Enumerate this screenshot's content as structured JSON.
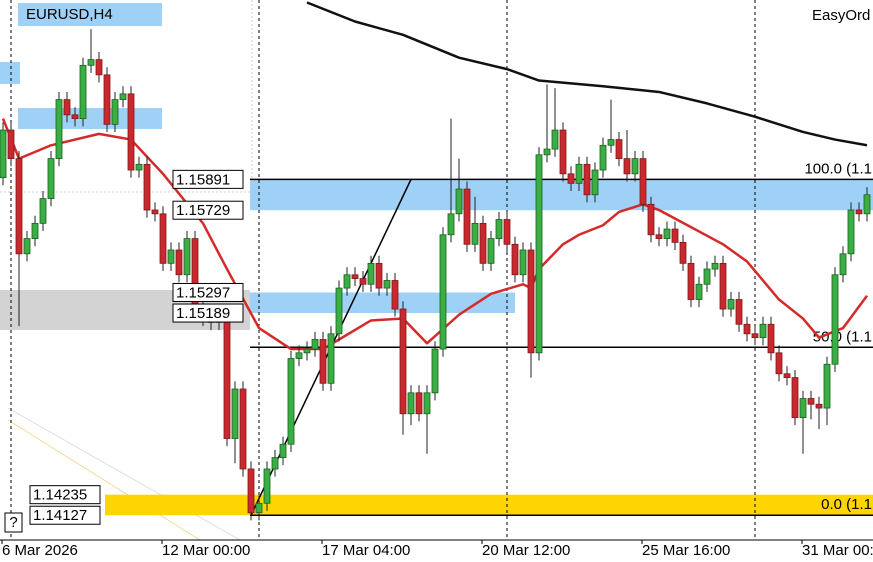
{
  "chart_data": {
    "type": "candlestick",
    "title": "EURUSD,H4",
    "watermark": "EasyOrd",
    "help": "?",
    "categories": [
      "6 Mar 2026",
      null,
      null,
      null,
      null,
      null,
      null,
      null,
      null,
      null,
      null,
      null,
      null,
      null,
      null,
      null,
      null,
      null,
      null,
      null,
      "12 Mar 00:00",
      null,
      null,
      null,
      null,
      null,
      null,
      null,
      null,
      null,
      null,
      null,
      null,
      null,
      null,
      null,
      null,
      null,
      null,
      null,
      "17 Mar 04:00",
      null,
      null,
      null,
      null,
      null,
      null,
      null,
      null,
      null,
      null,
      null,
      null,
      null,
      null,
      null,
      null,
      null,
      null,
      null,
      "20 Mar 12:00",
      null,
      null,
      null,
      null,
      null,
      null,
      null,
      null,
      null,
      null,
      null,
      null,
      null,
      null,
      null,
      null,
      null,
      null,
      null,
      "25 Mar 16:00",
      null,
      null,
      null,
      null,
      null,
      null,
      null,
      null,
      null,
      null,
      null,
      null,
      null,
      null,
      null,
      null,
      null,
      null,
      null,
      "31 Mar 00:",
      null,
      null,
      null,
      null,
      null,
      null,
      null,
      null
    ],
    "open": [
      1.159,
      1.1615,
      1.16,
      1.155,
      1.1558,
      1.1566,
      1.1579,
      1.16,
      1.1631,
      1.1623,
      1.1621,
      1.1649,
      1.1652,
      1.1644,
      1.1618,
      1.1631,
      1.1634,
      1.1594,
      1.1597,
      1.1573,
      1.1571,
      1.1545,
      1.1552,
      1.1539,
      1.1558,
      1.1521,
      1.1516,
      1.1514,
      1.1516,
      1.1453,
      1.1479,
      1.1437,
      1.1414,
      1.1419,
      1.1437,
      1.1443,
      1.145,
      1.1495,
      1.1498,
      1.15,
      1.1505,
      1.1482,
      1.1508,
      1.1532,
      1.1539,
      1.1537,
      1.1534,
      1.1545,
      1.1532,
      1.1536,
      1.1521,
      1.1466,
      1.1477,
      1.1466,
      1.1477,
      1.15,
      1.156,
      1.1571,
      1.1584,
      1.1555,
      1.1566,
      1.1545,
      1.1558,
      1.1568,
      1.1555,
      1.1539,
      1.1552,
      1.1498,
      1.1602,
      1.1605,
      1.1615,
      1.1592,
      1.1587,
      1.1597,
      1.1581,
      1.1594,
      1.1607,
      1.161,
      1.16,
      1.1592,
      1.16,
      1.1576,
      1.156,
      1.1558,
      1.1563,
      1.1556,
      1.1545,
      1.1526,
      1.1534,
      1.1542,
      1.1545,
      1.1521,
      1.1526,
      1.1513,
      1.1508,
      1.1506,
      1.1513,
      1.1498,
      1.1487,
      1.1485,
      1.1464,
      1.1474,
      1.1471,
      1.1469,
      1.1492,
      1.1539,
      1.155,
      1.1573,
      1.1571
    ],
    "high": [
      1.1619,
      1.1619,
      1.1604,
      1.1562,
      1.157,
      1.1583,
      1.1604,
      1.1635,
      1.1635,
      1.1627,
      1.1653,
      1.1668,
      1.1656,
      1.1648,
      1.1635,
      1.1638,
      1.1638,
      1.1601,
      1.1601,
      1.1577,
      1.1575,
      1.1556,
      1.1556,
      1.1562,
      1.1562,
      1.1525,
      1.152,
      1.152,
      1.152,
      1.1483,
      1.1483,
      1.1441,
      1.1423,
      1.1441,
      1.1447,
      1.1454,
      1.1499,
      1.1502,
      1.1504,
      1.1509,
      1.1509,
      1.1512,
      1.1536,
      1.1543,
      1.1543,
      1.1541,
      1.1549,
      1.1549,
      1.154,
      1.154,
      1.1525,
      1.1481,
      1.1481,
      1.1481,
      1.1504,
      1.1564,
      1.1621,
      1.16,
      1.1588,
      1.158,
      1.157,
      1.1562,
      1.1572,
      1.1572,
      1.1559,
      1.1556,
      1.1556,
      1.1606,
      1.1639,
      1.1637,
      1.1619,
      1.1596,
      1.1601,
      1.1601,
      1.1598,
      1.1611,
      1.1631,
      1.1614,
      1.1615,
      1.1604,
      1.1604,
      1.158,
      1.1564,
      1.1567,
      1.1567,
      1.156,
      1.1549,
      1.1538,
      1.1546,
      1.1549,
      1.1549,
      1.153,
      1.153,
      1.1517,
      1.1512,
      1.1517,
      1.1517,
      1.1502,
      1.1491,
      1.1489,
      1.1478,
      1.1478,
      1.1475,
      1.1496,
      1.1543,
      1.1554,
      1.1577,
      1.1577,
      1.1585
    ],
    "low": [
      1.1586,
      1.1596,
      1.1512,
      1.1546,
      1.1554,
      1.1562,
      1.1575,
      1.1596,
      1.1619,
      1.1617,
      1.1617,
      1.1645,
      1.164,
      1.1614,
      1.1614,
      1.1627,
      1.159,
      1.159,
      1.1569,
      1.1567,
      1.1541,
      1.1541,
      1.1535,
      1.1535,
      1.1517,
      1.1512,
      1.151,
      1.151,
      1.1449,
      1.144,
      1.1433,
      1.141,
      1.141,
      1.1415,
      1.1433,
      1.1439,
      1.1446,
      1.1491,
      1.1494,
      1.1496,
      1.1478,
      1.1478,
      1.1504,
      1.1528,
      1.1533,
      1.153,
      1.153,
      1.1528,
      1.1528,
      1.1517,
      1.1455,
      1.146,
      1.1462,
      1.1445,
      1.1473,
      1.1496,
      1.1556,
      1.1567,
      1.1551,
      1.1551,
      1.1541,
      1.1541,
      1.1554,
      1.1551,
      1.1535,
      1.1535,
      1.1485,
      1.1494,
      1.1598,
      1.1601,
      1.1588,
      1.1583,
      1.1583,
      1.1577,
      1.1577,
      1.159,
      1.1603,
      1.1596,
      1.1588,
      1.1588,
      1.1572,
      1.1556,
      1.1554,
      1.1554,
      1.1552,
      1.1541,
      1.1522,
      1.1522,
      1.153,
      1.1538,
      1.1517,
      1.1517,
      1.1509,
      1.1504,
      1.1502,
      1.1502,
      1.1494,
      1.1483,
      1.1481,
      1.146,
      1.1445,
      1.1463,
      1.1458,
      1.146,
      1.1488,
      1.1535,
      1.1546,
      1.1567,
      1.1567
    ],
    "close": [
      1.1615,
      1.16,
      1.155,
      1.1558,
      1.1566,
      1.1579,
      1.16,
      1.1631,
      1.1623,
      1.1621,
      1.1649,
      1.1652,
      1.1644,
      1.1618,
      1.1631,
      1.1634,
      1.1594,
      1.1597,
      1.1573,
      1.1571,
      1.1545,
      1.1552,
      1.1539,
      1.1558,
      1.1521,
      1.1516,
      1.1514,
      1.1516,
      1.1453,
      1.1479,
      1.1437,
      1.1414,
      1.1419,
      1.1437,
      1.1443,
      1.145,
      1.1495,
      1.1498,
      1.15,
      1.1505,
      1.1482,
      1.1508,
      1.1532,
      1.1539,
      1.1537,
      1.1534,
      1.1545,
      1.1532,
      1.1536,
      1.1521,
      1.1466,
      1.1477,
      1.1466,
      1.1477,
      1.15,
      1.156,
      1.1571,
      1.1584,
      1.1555,
      1.1566,
      1.1545,
      1.1558,
      1.1568,
      1.1555,
      1.1539,
      1.1552,
      1.1498,
      1.1602,
      1.1605,
      1.1615,
      1.1592,
      1.1587,
      1.1597,
      1.1581,
      1.1594,
      1.1607,
      1.161,
      1.16,
      1.1592,
      1.16,
      1.1576,
      1.156,
      1.1558,
      1.1563,
      1.1556,
      1.1545,
      1.1526,
      1.1534,
      1.1542,
      1.1545,
      1.1521,
      1.1526,
      1.1513,
      1.1508,
      1.1506,
      1.1513,
      1.1498,
      1.1487,
      1.1485,
      1.1464,
      1.1474,
      1.1471,
      1.1469,
      1.1492,
      1.1539,
      1.155,
      1.1573,
      1.1571,
      1.1581
    ],
    "up_color": "#3aae45",
    "down_color": "#c8282e",
    "ylim": [
      1.13997,
      1.16833
    ],
    "period_separators": [
      1,
      32,
      63,
      94
    ],
    "lines": [
      {
        "color": "#111111",
        "x": [
          38,
          44,
          50,
          57,
          63,
          67,
          75,
          82,
          88,
          94,
          100,
          104,
          108
        ],
        "values": [
          1.1682,
          1.1672,
          1.1665,
          1.1653,
          1.1647,
          1.1641,
          1.1638,
          1.1635,
          1.1629,
          1.1622,
          1.1614,
          1.161,
          1.1607
        ]
      },
      {
        "color": "#d42a2a",
        "x": [
          0,
          2,
          6,
          12,
          16,
          20,
          25,
          28,
          32,
          36,
          40,
          42,
          46,
          50,
          53,
          57,
          61,
          65,
          66,
          67,
          70,
          72,
          75,
          77,
          80,
          82,
          86,
          90,
          93,
          97,
          100,
          102,
          105,
          108
        ],
        "values": [
          1.1621,
          1.16,
          1.1607,
          1.1613,
          1.161,
          1.1592,
          1.1566,
          1.1542,
          1.1511,
          1.15,
          1.15,
          1.1505,
          1.1515,
          1.1516,
          1.1503,
          1.1518,
          1.1529,
          1.1534,
          1.1532,
          1.1542,
          1.1555,
          1.156,
          1.1565,
          1.1572,
          1.1576,
          1.1573,
          1.1564,
          1.1555,
          1.1546,
          1.1526,
          1.1516,
          1.1506,
          1.1511,
          1.1528
        ]
      }
    ],
    "trendline": {
      "x": [
        31,
        51
      ],
      "values": [
        1.14127,
        1.15891
      ]
    },
    "zones": [
      {
        "top": 1.15891,
        "bottom": 1.15729,
        "color": "#9fd0f5"
      },
      {
        "top": 1.15297,
        "bottom": 1.15189,
        "color": "#9fd0f5"
      },
      {
        "top": 1.1531,
        "bottom": 1.151,
        "color": "#d3d3d3"
      },
      {
        "top": 1.14235,
        "bottom": 1.14127,
        "color": "#ffd500"
      }
    ],
    "fibo": [
      {
        "label": "100.0 (1.1",
        "value": 1.15891
      },
      {
        "label": "50.0 (1.1",
        "value": 1.15009
      },
      {
        "label": "0.0 (1.1",
        "value": 1.14127
      }
    ]
  }
}
